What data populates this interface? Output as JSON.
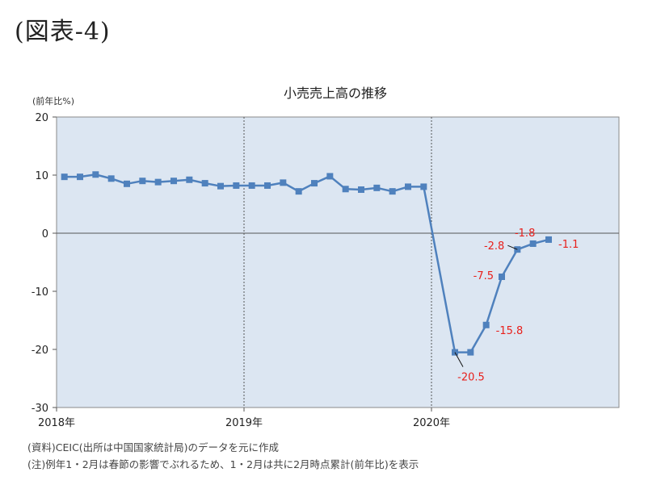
{
  "figure_label": "(図表-4)",
  "chart_data": {
    "type": "line",
    "title": "小売売上高の推移",
    "ylabel": "(前年比%)",
    "xlabel": "",
    "ylim": [
      -30,
      20
    ],
    "yticks": [
      -30,
      -20,
      -10,
      0,
      10,
      20
    ],
    "year_labels": [
      "2018年",
      "2019年",
      "2020年"
    ],
    "x": [
      "2018-01",
      "2018-02",
      "2018-03",
      "2018-04",
      "2018-05",
      "2018-06",
      "2018-07",
      "2018-08",
      "2018-09",
      "2018-10",
      "2018-11",
      "2018-12",
      "2019-01",
      "2019-02",
      "2019-03",
      "2019-04",
      "2019-05",
      "2019-06",
      "2019-07",
      "2019-08",
      "2019-09",
      "2019-10",
      "2019-11",
      "2019-12",
      "2020-02",
      "2020-03",
      "2020-04",
      "2020-05",
      "2020-06",
      "2020-07",
      "2020-08"
    ],
    "series": [
      {
        "name": "",
        "values": [
          9.7,
          9.7,
          10.1,
          9.4,
          8.5,
          9.0,
          8.8,
          9.0,
          9.2,
          8.6,
          8.1,
          8.2,
          8.2,
          8.2,
          8.7,
          7.2,
          8.6,
          9.8,
          7.6,
          7.5,
          7.8,
          7.2,
          8.0,
          8.0,
          -20.5,
          -20.5,
          -15.8,
          -7.5,
          -2.8,
          -1.8,
          -1.1
        ],
        "color": "#4f81bd"
      }
    ],
    "annotations": [
      {
        "label": "-20.5",
        "index": 24
      },
      {
        "label": "-15.8",
        "index": 26
      },
      {
        "label": "-7.5",
        "index": 27
      },
      {
        "label": "-2.8",
        "index": 28
      },
      {
        "label": "-1.8",
        "index": 29
      },
      {
        "label": "-1.1",
        "index": 30
      }
    ],
    "annotation_color": "#e8201c",
    "plot_background": "#dce6f2",
    "grid": false
  },
  "notes": [
    "(資料)CEIC(出所は中国国家統計局)のデータを元に作成",
    "(注)例年1・2月は春節の影響でぶれるため、1・2月は共に2月時点累計(前年比)を表示"
  ]
}
